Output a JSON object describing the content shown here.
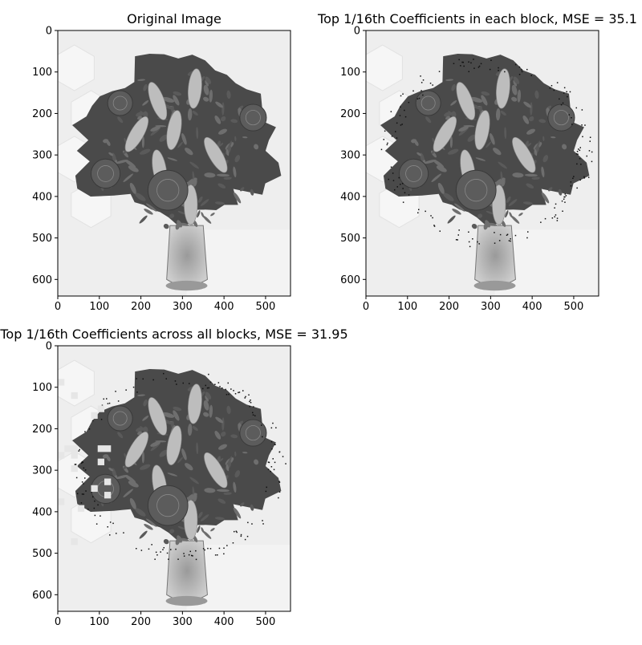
{
  "panels": [
    {
      "title": "Original Image",
      "variant": "original",
      "x_ticks": [
        "0",
        "100",
        "200",
        "300",
        "400",
        "500"
      ],
      "y_ticks": [
        "0",
        "100",
        "200",
        "300",
        "400",
        "500",
        "600"
      ]
    },
    {
      "title": "Top 1/16th Coefficients in each block, MSE = 35.1",
      "variant": "per-block",
      "x_ticks": [
        "0",
        "100",
        "200",
        "300",
        "400",
        "500"
      ],
      "y_ticks": [
        "0",
        "100",
        "200",
        "300",
        "400",
        "500",
        "600"
      ]
    },
    {
      "title": "Top 1/16th Coefficients across all blocks, MSE = 31.95",
      "variant": "global",
      "x_ticks": [
        "0",
        "100",
        "200",
        "300",
        "400",
        "500"
      ],
      "y_ticks": [
        "0",
        "100",
        "200",
        "300",
        "400",
        "500",
        "600"
      ]
    }
  ],
  "image_extent": {
    "width": 560,
    "height": 640
  },
  "colors": {
    "background": "#ffffff",
    "photo_background": "#eeeeee",
    "flower_dark": "#4a4a4a",
    "flower_mid": "#6e6e6e",
    "flower_light": "#bdbdbd",
    "axis": "#000000"
  }
}
